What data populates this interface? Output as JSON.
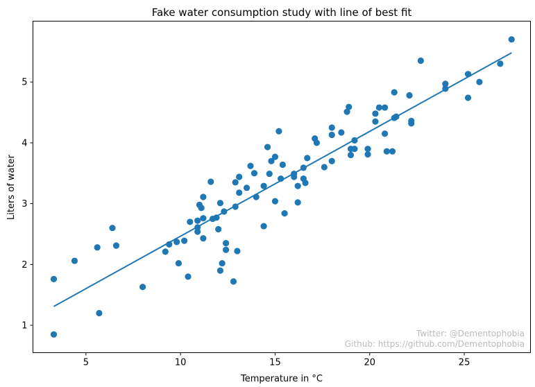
{
  "chart_data": {
    "type": "scatter",
    "title": "Fake water consumption study with line of best fit",
    "xlabel": "Temperature in °C",
    "ylabel": "Liters of water",
    "xlim": [
      2.2,
      28.5
    ],
    "ylim": [
      0.55,
      6.0
    ],
    "xticks": [
      5,
      10,
      15,
      20,
      25
    ],
    "yticks": [
      1,
      2,
      3,
      4,
      5
    ],
    "marker_color": "#1f77b4",
    "line_color": "#1f77b4",
    "series": [
      {
        "points": [
          [
            3.3,
            0.85
          ],
          [
            3.3,
            1.76
          ],
          [
            4.4,
            2.06
          ],
          [
            5.6,
            2.28
          ],
          [
            5.7,
            1.2
          ],
          [
            6.4,
            2.6
          ],
          [
            6.6,
            2.31
          ],
          [
            8.0,
            1.63
          ],
          [
            9.2,
            2.21
          ],
          [
            9.4,
            2.33
          ],
          [
            9.8,
            2.37
          ],
          [
            9.9,
            2.02
          ],
          [
            10.2,
            2.39
          ],
          [
            10.4,
            1.8
          ],
          [
            10.5,
            2.7
          ],
          [
            10.9,
            2.54
          ],
          [
            10.9,
            2.61
          ],
          [
            10.9,
            2.72
          ],
          [
            11.0,
            2.98
          ],
          [
            11.1,
            2.93
          ],
          [
            11.2,
            3.11
          ],
          [
            11.2,
            2.76
          ],
          [
            11.2,
            2.43
          ],
          [
            11.6,
            3.36
          ],
          [
            11.7,
            2.75
          ],
          [
            11.9,
            2.77
          ],
          [
            12.0,
            2.58
          ],
          [
            12.1,
            1.9
          ],
          [
            12.1,
            3.01
          ],
          [
            12.2,
            2.02
          ],
          [
            12.3,
            2.87
          ],
          [
            12.4,
            2.24
          ],
          [
            12.4,
            2.35
          ],
          [
            12.8,
            1.72
          ],
          [
            12.9,
            2.95
          ],
          [
            12.9,
            3.35
          ],
          [
            13.0,
            2.22
          ],
          [
            13.1,
            3.18
          ],
          [
            13.1,
            3.44
          ],
          [
            13.5,
            3.26
          ],
          [
            13.7,
            3.62
          ],
          [
            13.9,
            3.5
          ],
          [
            14.0,
            3.11
          ],
          [
            14.4,
            2.63
          ],
          [
            14.4,
            3.29
          ],
          [
            14.6,
            3.93
          ],
          [
            14.7,
            3.49
          ],
          [
            14.8,
            3.7
          ],
          [
            15.0,
            3.04
          ],
          [
            15.0,
            3.77
          ],
          [
            15.2,
            4.19
          ],
          [
            15.3,
            3.41
          ],
          [
            15.4,
            3.64
          ],
          [
            15.5,
            2.84
          ],
          [
            16.0,
            3.49
          ],
          [
            16.0,
            3.44
          ],
          [
            16.2,
            3.02
          ],
          [
            16.2,
            3.29
          ],
          [
            16.5,
            3.41
          ],
          [
            16.5,
            3.59
          ],
          [
            16.6,
            3.34
          ],
          [
            16.7,
            3.75
          ],
          [
            17.1,
            4.07
          ],
          [
            17.2,
            4.0
          ],
          [
            17.6,
            3.6
          ],
          [
            18.0,
            4.25
          ],
          [
            18.0,
            4.13
          ],
          [
            18.0,
            3.7
          ],
          [
            18.5,
            4.17
          ],
          [
            18.8,
            4.51
          ],
          [
            18.9,
            4.59
          ],
          [
            19.0,
            3.8
          ],
          [
            19.0,
            3.9
          ],
          [
            19.2,
            4.04
          ],
          [
            19.2,
            3.9
          ],
          [
            19.9,
            3.81
          ],
          [
            19.9,
            3.9
          ],
          [
            20.3,
            4.48
          ],
          [
            20.3,
            4.35
          ],
          [
            20.5,
            4.58
          ],
          [
            20.8,
            4.58
          ],
          [
            20.8,
            4.15
          ],
          [
            20.9,
            3.86
          ],
          [
            21.2,
            3.86
          ],
          [
            21.3,
            4.83
          ],
          [
            21.3,
            4.41
          ],
          [
            21.4,
            4.43
          ],
          [
            22.1,
            4.78
          ],
          [
            22.2,
            4.36
          ],
          [
            22.2,
            4.32
          ],
          [
            22.7,
            5.35
          ],
          [
            24.0,
            4.89
          ],
          [
            24.0,
            4.97
          ],
          [
            25.2,
            5.13
          ],
          [
            25.2,
            4.74
          ],
          [
            25.8,
            5.0
          ],
          [
            26.9,
            5.3
          ],
          [
            27.5,
            5.7
          ]
        ]
      }
    ],
    "fit_line": {
      "x": [
        3.3,
        27.5
      ],
      "y": [
        1.31,
        5.48
      ]
    }
  },
  "credits": {
    "twitter": "Twitter: @Dementophobia",
    "github": "Github: https://github.com/Dementophobia"
  }
}
